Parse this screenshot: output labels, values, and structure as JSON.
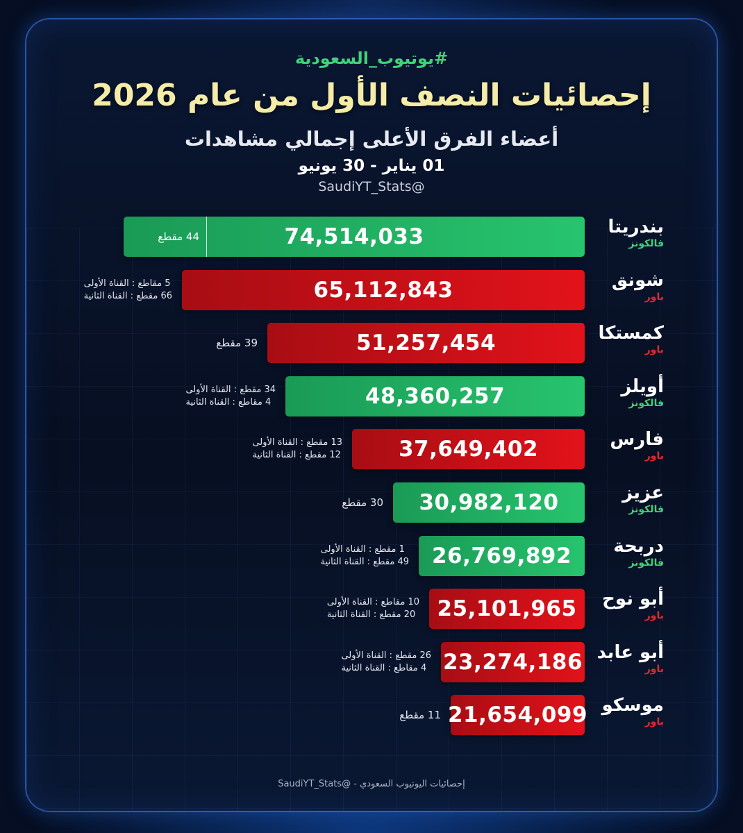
{
  "header": {
    "hashtag": "#يوتيوب_السعودية",
    "title": "إحصائيات النصف الأول من عام 2026",
    "subtitle": "أعضاء الفرق الأعلى إجمالي مشاهدات",
    "date_range": "01 يناير - 30 يونيو",
    "handle": "@SaudiYT_Stats"
  },
  "colors": {
    "green": "#27c46e",
    "red": "#e2121a",
    "title": "#f4eca8",
    "hashtag": "#3fd27a",
    "background": "#070f22"
  },
  "chart_data": {
    "type": "bar",
    "orientation": "horizontal",
    "title": "إحصائيات النصف الأول من عام 2026",
    "categories": [
      "بندريتا",
      "شونق",
      "كمستكا",
      "أويلز",
      "فارس",
      "عزيز",
      "دربحة",
      "أبو نوح",
      "أبو عابد",
      "موسكو"
    ],
    "values": [
      74514033,
      65112843,
      51257454,
      48360257,
      37649402,
      30982120,
      26769892,
      25101965,
      23274186,
      21654099
    ],
    "value_labels": [
      "74,514,033",
      "65,112,843",
      "51,257,454",
      "48,360,257",
      "37,649,402",
      "30,982,120",
      "26,769,892",
      "25,101,965",
      "23,274,186",
      "21,654,099"
    ],
    "teams": [
      "فالكونز",
      "باور",
      "باور",
      "فالكونز",
      "باور",
      "فالكونز",
      "فالكونز",
      "باور",
      "باور",
      "باور"
    ],
    "team_colors": [
      "green",
      "red",
      "red",
      "green",
      "red",
      "green",
      "green",
      "red",
      "red",
      "red"
    ],
    "clips": [
      [
        "44 مقطع"
      ],
      [
        "5 مقاطع : القناة الأولى",
        "66 مقطع : القناة الثانية"
      ],
      [
        "39 مقطع"
      ],
      [
        "34 مقطع : القناة الأولى",
        "4 مقاطع : القناة الثانية"
      ],
      [
        "13 مقطع : القناة الأولى",
        "12 مقطع : القناة الثانية"
      ],
      [
        "30 مقطع"
      ],
      [
        "1 مقطع : القناة الأولى",
        "49 مقطع : القناة الثانية"
      ],
      [
        "10 مقاطع : القناة الأولى",
        "20 مقطع : القناة الثانية"
      ],
      [
        "26 مقطع : القناة الأولى",
        "4 مقاطع : القناة الثانية"
      ],
      [
        "11 مقطع"
      ]
    ],
    "xlim": [
      0,
      74514033
    ],
    "grid": true,
    "legend": "none"
  },
  "footer": {
    "source": "إحصائيات اليوتيوب السعودي",
    "separator": "-",
    "handle": "@SaudiYT_Stats"
  }
}
